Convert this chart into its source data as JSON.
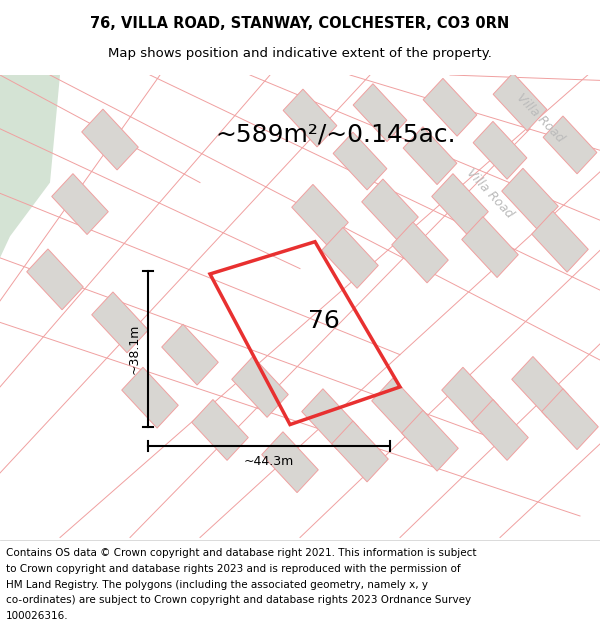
{
  "title_line1": "76, VILLA ROAD, STANWAY, COLCHESTER, CO3 0RN",
  "title_line2": "Map shows position and indicative extent of the property.",
  "area_text": "~589m²/~0.145ac.",
  "label_76": "76",
  "dim_height": "~38.1m",
  "dim_width": "~44.3m",
  "villa_road_label_1": "Villa Road",
  "villa_road_label_2": "Villa Road",
  "footer_lines": [
    "Contains OS data © Crown copyright and database right 2021. This information is subject",
    "to Crown copyright and database rights 2023 and is reproduced with the permission of",
    "HM Land Registry. The polygons (including the associated geometry, namely x, y",
    "co-ordinates) are subject to Crown copyright and database rights 2023 Ordnance Survey",
    "100026316."
  ],
  "map_bg": "#f9f8f6",
  "plot_outline_color": "#e83030",
  "road_line_color": "#f0a0a0",
  "building_fill": "#d8d6d2",
  "building_stroke": "#f0a0a0",
  "green_area_color": "#d4e3d4",
  "title_fontsize": 10.5,
  "subtitle_fontsize": 9.5,
  "area_fontsize": 18,
  "label_fontsize": 18,
  "footer_fontsize": 7.5,
  "road_label_color": "#bbbbbb",
  "road_label_fontsize": 9,
  "dim_fontsize": 9
}
